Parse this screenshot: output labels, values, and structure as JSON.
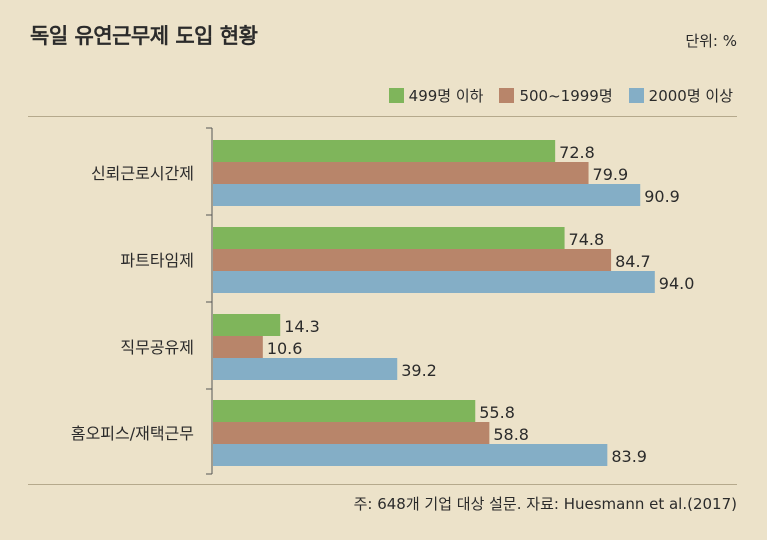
{
  "header": {
    "title": "독일 유연근무제 도입 현황",
    "unit": "단위: %"
  },
  "footer": {
    "source": "주: 648개 기업 대상 설문. 자료: Huesmann et al.(2017)"
  },
  "colors": {
    "background": "#ece2c9",
    "green": "#7fb55b",
    "brown": "#b8856a",
    "blue": "#84aec6"
  },
  "chart_data": {
    "type": "bar",
    "orientation": "horizontal",
    "title": "독일 유연근무제 도입 현황",
    "unit": "단위: %",
    "categories": [
      "신뢰근로시간제",
      "파트타임제",
      "직무공유제",
      "홈오피스/재택근무"
    ],
    "series": [
      {
        "name": "499명 이하",
        "color": "#7fb55b",
        "values": [
          72.8,
          74.8,
          14.3,
          55.8
        ]
      },
      {
        "name": "500~1999명",
        "color": "#b8856a",
        "values": [
          79.9,
          84.7,
          10.6,
          58.8
        ]
      },
      {
        "name": "2000명 이상",
        "color": "#84aec6",
        "values": [
          90.9,
          94.0,
          39.2,
          83.9
        ]
      }
    ],
    "xlim": [
      0,
      100
    ],
    "legend": "top-right",
    "grid": false
  }
}
